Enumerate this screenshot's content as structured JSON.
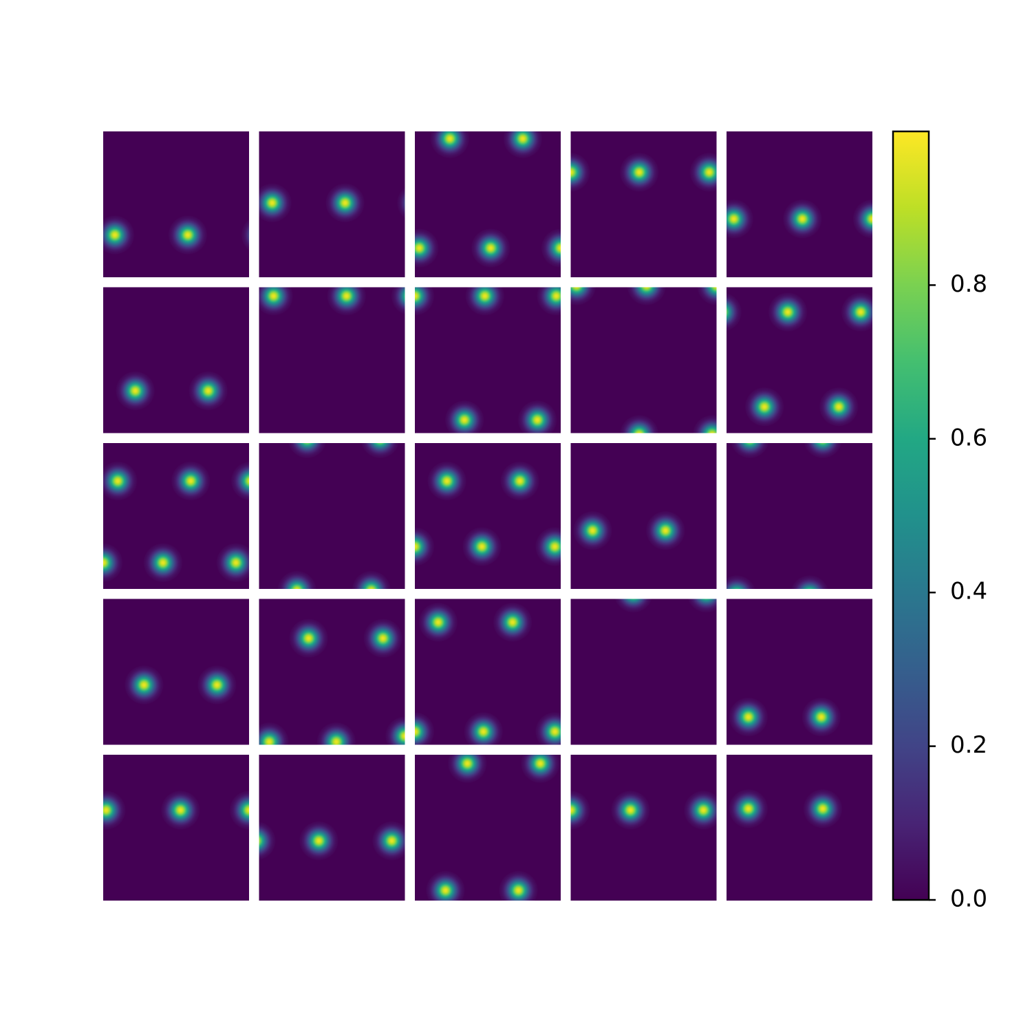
{
  "chart_data": {
    "type": "heatmap-grid",
    "colormap": "viridis",
    "amplitude": 0.97,
    "sigma": 0.045,
    "rows": 5,
    "cols": 5,
    "panels": [
      {
        "peaks": [
          [
            0.08,
            0.71
          ],
          [
            0.58,
            0.71
          ],
          [
            1.08,
            0.71
          ]
        ]
      },
      {
        "peaks": [
          [
            0.09,
            0.49
          ],
          [
            0.59,
            0.49
          ],
          [
            1.08,
            0.49
          ]
        ]
      },
      {
        "peaks": [
          [
            0.24,
            0.05
          ],
          [
            0.74,
            0.05
          ],
          [
            0.03,
            0.8
          ],
          [
            0.52,
            0.8
          ],
          [
            1.0,
            0.8
          ]
        ]
      },
      {
        "peaks": [
          [
            0.0,
            0.28
          ],
          [
            0.47,
            0.28
          ],
          [
            0.95,
            0.28
          ]
        ]
      },
      {
        "peaks": [
          [
            0.05,
            0.6
          ],
          [
            0.52,
            0.6
          ],
          [
            1.0,
            0.6
          ]
        ]
      },
      {
        "peaks": [
          [
            0.22,
            0.71
          ],
          [
            0.72,
            0.71
          ]
        ]
      },
      {
        "peaks": [
          [
            0.1,
            0.06
          ],
          [
            0.6,
            0.06
          ],
          [
            1.04,
            0.06
          ]
        ]
      },
      {
        "peaks": [
          [
            0.0,
            0.06
          ],
          [
            0.48,
            0.06
          ],
          [
            0.97,
            0.06
          ],
          [
            0.34,
            0.91
          ],
          [
            0.84,
            0.91
          ]
        ]
      },
      {
        "peaks": [
          [
            0.04,
            -0.01
          ],
          [
            0.52,
            -0.01
          ],
          [
            1.0,
            -0.01
          ],
          [
            0.47,
            1.01
          ],
          [
            0.97,
            1.01
          ]
        ]
      },
      {
        "peaks": [
          [
            -0.03,
            0.17
          ],
          [
            0.42,
            0.17
          ],
          [
            0.92,
            0.17
          ],
          [
            0.26,
            0.82
          ],
          [
            0.77,
            0.82
          ]
        ]
      },
      {
        "peaks": [
          [
            0.1,
            0.26
          ],
          [
            0.6,
            0.26
          ],
          [
            1.01,
            0.26
          ],
          [
            0.0,
            0.82
          ],
          [
            0.41,
            0.82
          ],
          [
            0.91,
            0.82
          ]
        ]
      },
      {
        "peaks": [
          [
            0.33,
            -0.03
          ],
          [
            0.83,
            -0.03
          ],
          [
            0.26,
            1.01
          ],
          [
            0.77,
            1.01
          ]
        ]
      },
      {
        "peaks": [
          [
            0.22,
            0.26
          ],
          [
            0.72,
            0.26
          ],
          [
            0.0,
            0.71
          ],
          [
            0.46,
            0.71
          ],
          [
            0.96,
            0.71
          ]
        ]
      },
      {
        "peaks": [
          [
            0.15,
            0.6
          ],
          [
            0.65,
            0.6
          ]
        ]
      },
      {
        "peaks": [
          [
            0.16,
            -0.03
          ],
          [
            0.66,
            -0.03
          ],
          [
            0.07,
            1.04
          ],
          [
            0.57,
            1.04
          ]
        ]
      },
      {
        "peaks": [
          [
            0.28,
            0.59
          ],
          [
            0.78,
            0.59
          ]
        ]
      },
      {
        "peaks": [
          [
            0.34,
            0.27
          ],
          [
            0.85,
            0.27
          ],
          [
            0.07,
            0.98
          ],
          [
            0.53,
            0.98
          ],
          [
            1.0,
            0.94
          ]
        ]
      },
      {
        "peaks": [
          [
            0.16,
            0.16
          ],
          [
            0.67,
            0.16
          ],
          [
            0.0,
            0.91
          ],
          [
            0.47,
            0.91
          ],
          [
            0.96,
            0.91
          ]
        ]
      },
      {
        "peaks": [
          [
            0.43,
            -0.04
          ],
          [
            0.93,
            -0.04
          ]
        ]
      },
      {
        "peaks": [
          [
            0.15,
            0.81
          ],
          [
            0.65,
            0.81
          ]
        ]
      },
      {
        "peaks": [
          [
            0.02,
            0.38
          ],
          [
            0.53,
            0.38
          ],
          [
            1.0,
            0.38
          ]
        ]
      },
      {
        "peaks": [
          [
            -0.02,
            0.59
          ],
          [
            0.41,
            0.59
          ],
          [
            0.91,
            0.59
          ]
        ]
      },
      {
        "peaks": [
          [
            0.36,
            0.06
          ],
          [
            0.86,
            0.06
          ],
          [
            0.21,
            0.93
          ],
          [
            0.71,
            0.93
          ]
        ]
      },
      {
        "peaks": [
          [
            0.0,
            0.38
          ],
          [
            0.41,
            0.38
          ],
          [
            0.91,
            0.38
          ]
        ]
      },
      {
        "peaks": [
          [
            0.15,
            0.37
          ],
          [
            0.66,
            0.37
          ]
        ]
      }
    ],
    "colorbar": {
      "ylim": [
        0,
        1.0
      ],
      "yticks": [
        {
          "value": 0,
          "label": "0.0"
        },
        0.2,
        0.4,
        0.6,
        0.8
      ]
    }
  }
}
